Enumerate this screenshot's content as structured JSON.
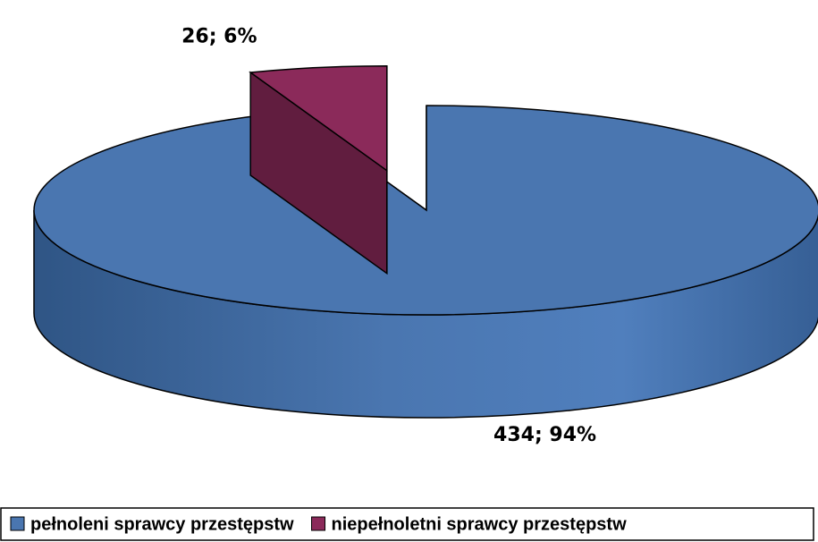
{
  "chart_data": {
    "type": "pie3d",
    "categories": [
      "pełnoleni sprawcy przestępstw",
      "niepełnoletni sprawcy przestępstw"
    ],
    "values": [
      434,
      26
    ],
    "value_labels": [
      "434; 94%",
      "26; 6%"
    ],
    "colors": [
      "#4a76b0",
      "#8b2a5a"
    ],
    "legend": "bottom"
  }
}
